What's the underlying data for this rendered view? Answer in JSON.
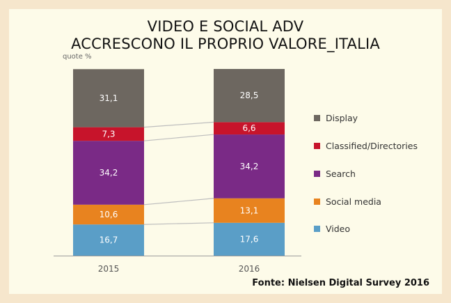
{
  "chart_data": {
    "type": "bar",
    "stacked": true,
    "title": "VIDEO E SOCIAL ADV",
    "subtitle": "ACCRESCONO IL PROPRIO VALORE_ITALIA",
    "ylabel": "quote %",
    "categories": [
      "2015",
      "2016"
    ],
    "series": [
      {
        "name": "Video",
        "values": [
          16.7,
          17.6
        ],
        "labels": [
          "16,7",
          "17,6"
        ],
        "color": "#5a9ec7"
      },
      {
        "name": "Social media",
        "values": [
          10.6,
          13.1
        ],
        "labels": [
          "10,6",
          "13,1"
        ],
        "color": "#e8831f"
      },
      {
        "name": "Search",
        "values": [
          34.2,
          34.2
        ],
        "labels": [
          "34,2",
          "34,2"
        ],
        "color": "#7a2a86"
      },
      {
        "name": "Classified/Directories",
        "values": [
          7.3,
          6.6
        ],
        "labels": [
          "7,3",
          "6,6"
        ],
        "color": "#c7142b"
      },
      {
        "name": "Display",
        "values": [
          31.1,
          28.5
        ],
        "labels": [
          "31,1",
          "28,5"
        ],
        "color": "#6d6760"
      }
    ],
    "legend_order": [
      "Display",
      "Classified/Directories",
      "Search",
      "Social media",
      "Video"
    ],
    "ylim": [
      0,
      100
    ],
    "grid": false,
    "legend_position": "right",
    "source": "Fonte: Nielsen Digital Survey 2016"
  }
}
